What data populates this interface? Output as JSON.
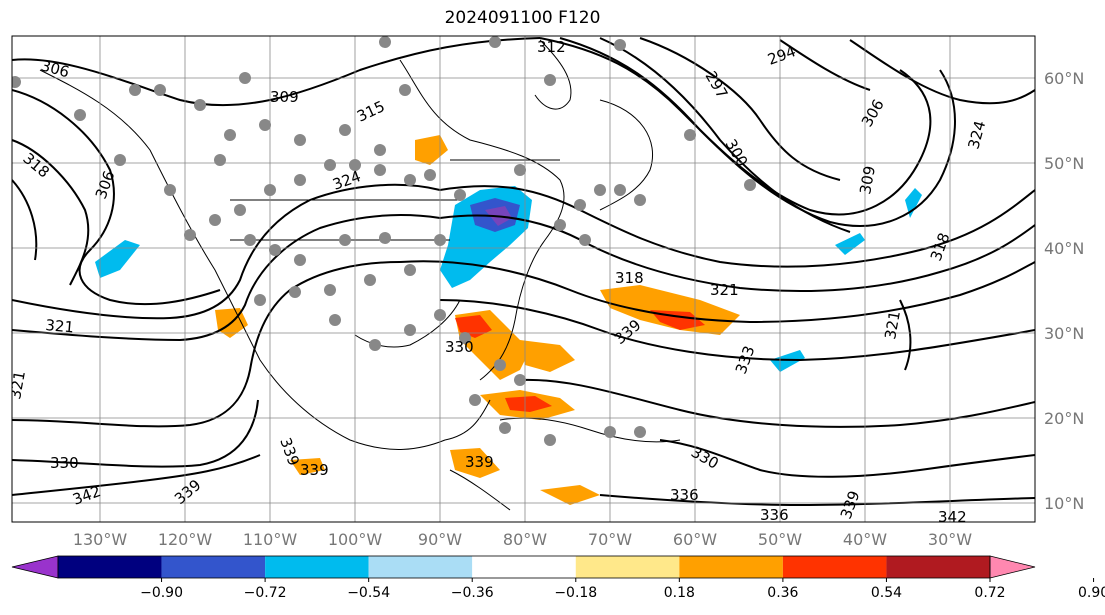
{
  "title": "2024091100 F120",
  "map": {
    "lon_labels": [
      "130°W",
      "120°W",
      "110°W",
      "100°W",
      "90°W",
      "80°W",
      "70°W",
      "60°W",
      "50°W",
      "40°W",
      "30°W"
    ],
    "lat_labels": [
      "60°N",
      "50°N",
      "40°N",
      "30°N",
      "20°N",
      "10°N"
    ],
    "contour_labels": [
      "306",
      "309",
      "312",
      "297",
      "294",
      "306",
      "324",
      "318",
      "306",
      "315",
      "324",
      "300",
      "309",
      "318",
      "321",
      "321",
      "318",
      "321",
      "330",
      "339",
      "333",
      "321",
      "339",
      "339",
      "330",
      "339",
      "330",
      "336",
      "336",
      "342",
      "339",
      "342",
      "339"
    ],
    "station_marker_color": "#888888",
    "coastline_color": "#000000"
  },
  "colorbar": {
    "ticks": [
      "−0.90",
      "−0.72",
      "−0.54",
      "−0.36",
      "−0.18",
      "0.18",
      "0.36",
      "0.54",
      "0.72",
      "0.90"
    ],
    "colors": [
      "#9933cc",
      "#00007f",
      "#3355cc",
      "#00bbee",
      "#aaddf5",
      "#ffffff",
      "#ffe88a",
      "#ffa000",
      "#ff3300",
      "#b01a20",
      "#ff88b0"
    ]
  }
}
